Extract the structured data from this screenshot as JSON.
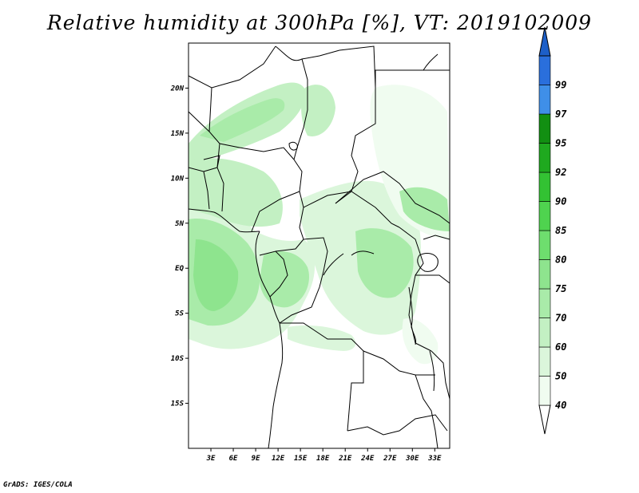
{
  "title": "Relative humidity at 300hPa [%], VT: 2019102009",
  "credit": "GrADS: IGES/COLA",
  "map": {
    "lon_range": [
      0,
      35
    ],
    "lat_range": [
      -20,
      25
    ],
    "lat_ticks": [
      {
        "lat": 20,
        "label": "20N"
      },
      {
        "lat": 15,
        "label": "15N"
      },
      {
        "lat": 10,
        "label": "10N"
      },
      {
        "lat": 5,
        "label": "5N"
      },
      {
        "lat": 0,
        "label": "EQ"
      },
      {
        "lat": -5,
        "label": "5S"
      },
      {
        "lat": -10,
        "label": "10S"
      },
      {
        "lat": -15,
        "label": "15S"
      }
    ],
    "lon_ticks": [
      {
        "lon": 3,
        "label": "3E"
      },
      {
        "lon": 6,
        "label": "6E"
      },
      {
        "lon": 9,
        "label": "9E"
      },
      {
        "lon": 12,
        "label": "12E"
      },
      {
        "lon": 15,
        "label": "15E"
      },
      {
        "lon": 18,
        "label": "18E"
      },
      {
        "lon": 21,
        "label": "21E"
      },
      {
        "lon": 24,
        "label": "24E"
      },
      {
        "lon": 27,
        "label": "27E"
      },
      {
        "lon": 30,
        "label": "30E"
      },
      {
        "lon": 33,
        "label": "33E"
      }
    ]
  },
  "colorbar": {
    "levels": [
      {
        "label": "40",
        "color": "#f0fcf0"
      },
      {
        "label": "50",
        "color": "#dbf6db"
      },
      {
        "label": "60",
        "color": "#c3f0c3"
      },
      {
        "label": "70",
        "color": "#a9eba9"
      },
      {
        "label": "75",
        "color": "#8ee48e"
      },
      {
        "label": "80",
        "color": "#6ede6e"
      },
      {
        "label": "85",
        "color": "#4fd34f"
      },
      {
        "label": "90",
        "color": "#33c233"
      },
      {
        "label": "92",
        "color": "#1fa91f"
      },
      {
        "label": "95",
        "color": "#128f12"
      },
      {
        "label": "97",
        "color": "#3f8fe8"
      },
      {
        "label": "99",
        "color": "#2a6fdc"
      }
    ],
    "top_color": "#1d5fc8"
  }
}
